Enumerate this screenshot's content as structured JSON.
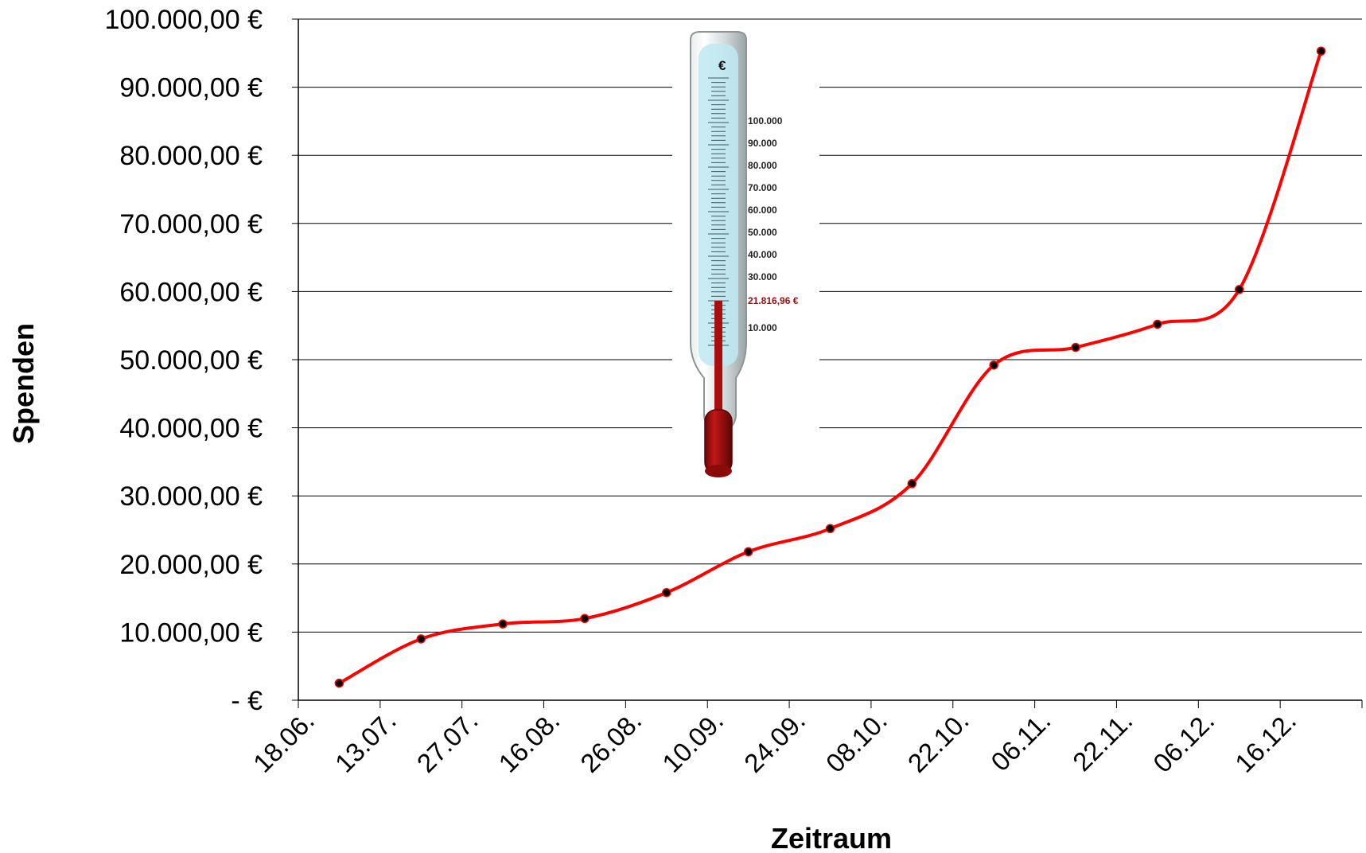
{
  "chart_data": {
    "type": "line",
    "title": "",
    "xlabel": "Zeitraum",
    "ylabel": "Spenden",
    "categories": [
      "18.06.",
      "13.07.",
      "27.07.",
      "16.08.",
      "26.08.",
      "10.09.",
      "24.09.",
      "08.10.",
      "22.10.",
      "06.11.",
      "22.11.",
      "06.12.",
      "16.12."
    ],
    "y_tick_labels": [
      "-      €",
      "10.000,00 €",
      "20.000,00 €",
      "30.000,00 €",
      "40.000,00 €",
      "50.000,00 €",
      "60.000,00 €",
      "70.000,00 €",
      "80.000,00 €",
      "90.000,00 €",
      "100.000,00 €"
    ],
    "ylim": [
      0,
      100000
    ],
    "grid": true,
    "legend": "none",
    "series": [
      {
        "values": [
          2500,
          9000,
          11200,
          12000,
          15800,
          21800,
          25200,
          31800,
          49200,
          51800,
          55200,
          60300,
          95300
        ],
        "color": "#ff0000",
        "marker_color": "#000000"
      }
    ]
  },
  "thermometer": {
    "unit": "€",
    "scale_labels": [
      "100.000",
      "90.000",
      "80.000",
      "70.000",
      "60.000",
      "50.000",
      "40.000",
      "30.000",
      "10.000"
    ],
    "current_label": "21.816,96 €",
    "fill_color": "#a80e0e",
    "glass_color": "#bfe9f2"
  }
}
